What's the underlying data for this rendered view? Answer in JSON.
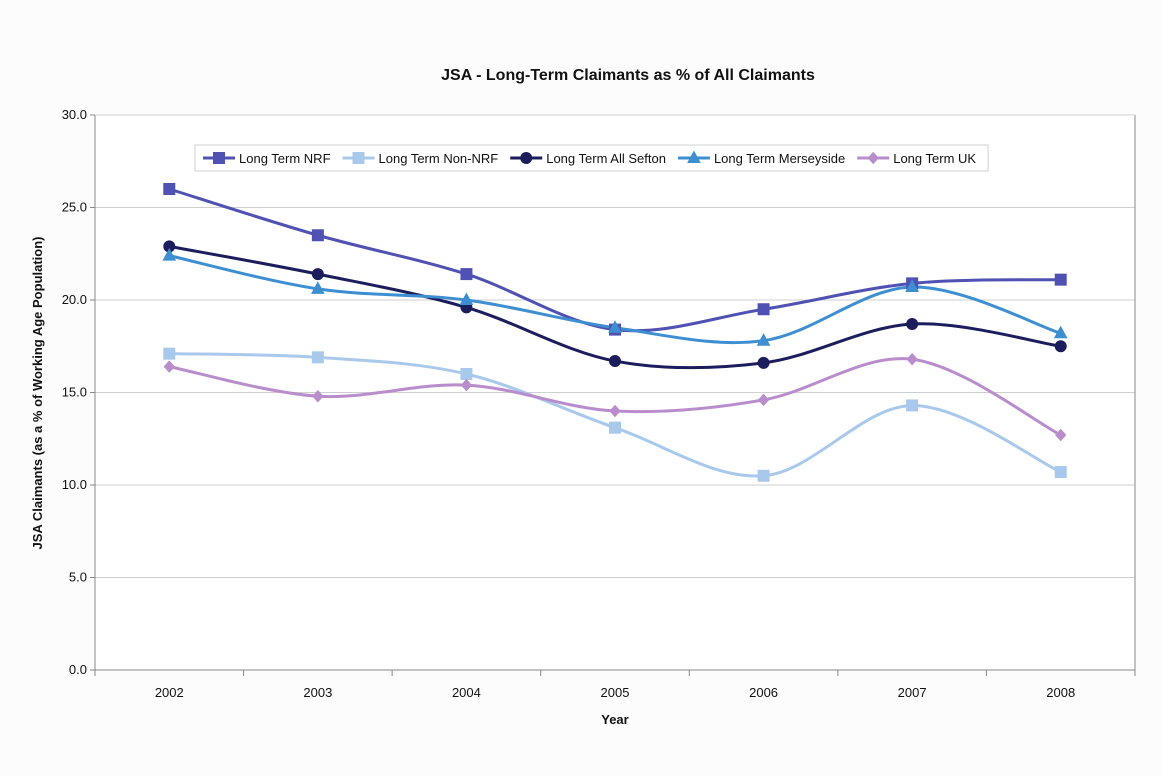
{
  "chart_data": {
    "type": "line",
    "title": "JSA - Long-Term Claimants as % of All Claimants",
    "xlabel": "Year",
    "ylabel": "JSA Claimants (as a % of Working Age Population)",
    "categories": [
      "2002",
      "2003",
      "2004",
      "2005",
      "2006",
      "2007",
      "2008"
    ],
    "ylim": [
      0,
      30
    ],
    "yticks": [
      "0.0",
      "5.0",
      "10.0",
      "15.0",
      "20.0",
      "25.0",
      "30.0"
    ],
    "ytick_values": [
      0,
      5,
      10,
      15,
      20,
      25,
      30
    ],
    "grid": true,
    "legend_position": "top-right",
    "series": [
      {
        "name": "Long Term  NRF",
        "values": [
          26.0,
          23.5,
          21.4,
          18.4,
          19.5,
          20.9,
          21.1
        ],
        "color": "#4f51b3",
        "marker": "square"
      },
      {
        "name": "Long Term  Non-NRF",
        "values": [
          17.1,
          16.9,
          16.0,
          13.1,
          10.5,
          14.3,
          10.7
        ],
        "color": "#a9c9ec",
        "marker": "square"
      },
      {
        "name": "Long Term  All Sefton",
        "values": [
          22.9,
          21.4,
          19.6,
          16.7,
          16.6,
          18.7,
          17.5
        ],
        "color": "#1c1d5c",
        "marker": "circle"
      },
      {
        "name": "Long Term  Merseyside",
        "values": [
          22.4,
          20.6,
          20.0,
          18.5,
          17.8,
          20.7,
          18.2
        ],
        "color": "#3d8fd1",
        "marker": "triangle"
      },
      {
        "name": "Long Term  UK",
        "values": [
          16.4,
          14.8,
          15.4,
          14.0,
          14.6,
          16.8,
          12.7
        ],
        "color": "#b98ccc",
        "marker": "diamond"
      }
    ]
  }
}
